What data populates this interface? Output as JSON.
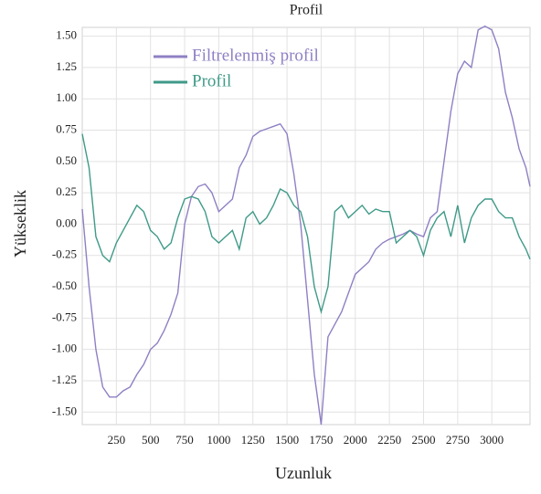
{
  "chart_data": {
    "type": "line",
    "title": "Profil",
    "x_label": "Uzunluk",
    "y_label": "Yükseklik",
    "x": [
      0,
      50,
      100,
      150,
      200,
      250,
      300,
      350,
      400,
      450,
      500,
      550,
      600,
      650,
      700,
      750,
      800,
      850,
      900,
      950,
      1000,
      1050,
      1100,
      1150,
      1200,
      1250,
      1300,
      1350,
      1400,
      1450,
      1500,
      1550,
      1600,
      1650,
      1700,
      1750,
      1800,
      1850,
      1900,
      1950,
      2000,
      2050,
      2100,
      2150,
      2200,
      2250,
      2300,
      2350,
      2400,
      2450,
      2500,
      2550,
      2600,
      2650,
      2700,
      2750,
      2800,
      2850,
      2900,
      2950,
      3000,
      3050,
      3100,
      3150,
      3200,
      3250,
      3280
    ],
    "series": [
      {
        "name": "Filtrelenmiş profil",
        "color": "#8f80c4",
        "values": [
          0.12,
          -0.5,
          -1.0,
          -1.3,
          -1.38,
          -1.38,
          -1.33,
          -1.3,
          -1.2,
          -1.12,
          -1.0,
          -0.95,
          -0.85,
          -0.72,
          -0.55,
          0.0,
          0.22,
          0.3,
          0.32,
          0.25,
          0.1,
          0.15,
          0.2,
          0.45,
          0.55,
          0.7,
          0.74,
          0.76,
          0.78,
          0.8,
          0.72,
          0.4,
          0.0,
          -0.6,
          -1.2,
          -1.6,
          -0.9,
          -0.8,
          -0.7,
          -0.55,
          -0.4,
          -0.35,
          -0.3,
          -0.2,
          -0.15,
          -0.12,
          -0.1,
          -0.08,
          -0.05,
          -0.08,
          -0.1,
          0.05,
          0.1,
          0.5,
          0.9,
          1.2,
          1.3,
          1.25,
          1.55,
          1.58,
          1.55,
          1.4,
          1.05,
          0.85,
          0.6,
          0.45,
          0.3
        ]
      },
      {
        "name": "Profil",
        "color": "#3f9a88",
        "values": [
          0.72,
          0.45,
          -0.1,
          -0.25,
          -0.3,
          -0.15,
          -0.05,
          0.05,
          0.15,
          0.1,
          -0.05,
          -0.1,
          -0.2,
          -0.15,
          0.05,
          0.2,
          0.22,
          0.2,
          0.1,
          -0.1,
          -0.15,
          -0.1,
          -0.05,
          -0.2,
          0.05,
          0.1,
          0.0,
          0.05,
          0.15,
          0.28,
          0.25,
          0.15,
          0.1,
          -0.1,
          -0.5,
          -0.7,
          -0.5,
          0.1,
          0.15,
          0.05,
          0.1,
          0.15,
          0.08,
          0.12,
          0.1,
          0.1,
          -0.15,
          -0.1,
          -0.05,
          -0.1,
          -0.25,
          -0.05,
          0.05,
          0.1,
          -0.1,
          0.15,
          -0.15,
          0.05,
          0.15,
          0.2,
          0.2,
          0.1,
          0.05,
          0.05,
          -0.1,
          -0.2,
          -0.28
        ]
      }
    ],
    "xlim": [
      0,
      3280
    ],
    "xticks": [
      250,
      500,
      750,
      1000,
      1250,
      1500,
      1750,
      2000,
      2250,
      2500,
      2750,
      3000
    ],
    "ylim": [
      -1.6,
      1.57
    ],
    "yticks": [
      {
        "value": -1.5,
        "label": "-1.50"
      },
      -1.25,
      {
        "value": -1.0,
        "label": "-1.00"
      },
      -0.75,
      {
        "value": -0.5,
        "label": "-0.50"
      },
      -0.25,
      {
        "value": 0,
        "label": "0.00"
      },
      0.25,
      {
        "value": 0.5,
        "label": "0.50"
      },
      0.75,
      {
        "value": 1.0,
        "label": "1.00"
      },
      1.25,
      {
        "value": 1.5,
        "label": "1.50"
      }
    ],
    "grid": true,
    "legend": "upper left"
  }
}
